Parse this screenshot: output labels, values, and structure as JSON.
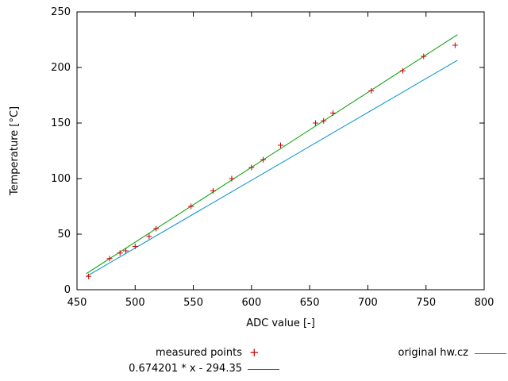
{
  "chart_data": {
    "type": "scatter",
    "title": "",
    "xlabel": "ADC value [-]",
    "ylabel": "Temperature [°C]",
    "xlim": [
      450,
      800
    ],
    "ylim": [
      0,
      250
    ],
    "xticks": [
      450,
      500,
      550,
      600,
      650,
      700,
      750,
      800
    ],
    "yticks": [
      0,
      50,
      100,
      150,
      200,
      250
    ],
    "grid": false,
    "legend_position": "below-plot",
    "series": [
      {
        "name": "measured points",
        "type": "points",
        "marker": "plus",
        "color": "#cc0000",
        "points": [
          [
            460,
            12
          ],
          [
            478,
            28
          ],
          [
            487,
            33
          ],
          [
            492,
            35
          ],
          [
            500,
            39
          ],
          [
            512,
            48
          ],
          [
            518,
            55
          ],
          [
            548,
            75
          ],
          [
            567,
            89
          ],
          [
            583,
            100
          ],
          [
            600,
            110
          ],
          [
            610,
            117
          ],
          [
            625,
            130
          ],
          [
            655,
            150
          ],
          [
            662,
            152
          ],
          [
            670,
            159
          ],
          [
            703,
            179
          ],
          [
            730,
            197
          ],
          [
            748,
            210
          ],
          [
            775,
            220
          ]
        ]
      },
      {
        "name": "0.674201 * x - 294.35",
        "type": "line",
        "color": "#00a000",
        "slope": 0.674201,
        "intercept": -294.35,
        "xrange": [
          458,
          777
        ]
      },
      {
        "name": "original hw.cz",
        "type": "line",
        "color": "#0090d0",
        "slope": 0.61,
        "intercept": -267.5,
        "xrange": [
          458,
          777
        ]
      }
    ]
  }
}
